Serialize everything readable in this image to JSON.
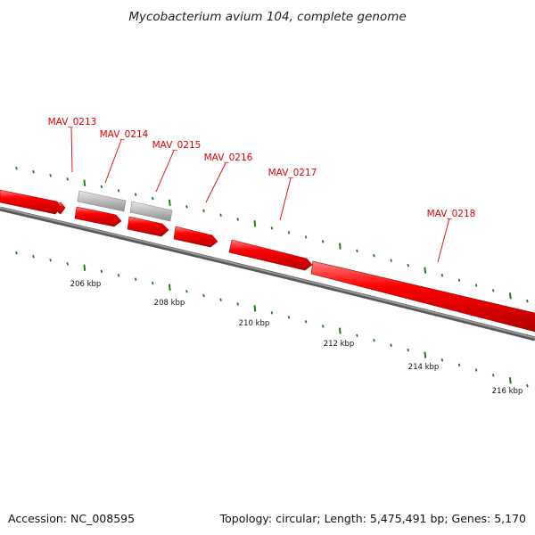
{
  "title": "Mycobacterium avium 104, complete genome",
  "footer": {
    "accession": "Accession: NC_008595",
    "summary": "Topology: circular; Length: 5,475,491 bp; Genes: 5,170"
  },
  "colors": {
    "gene_fill": "#ee0000",
    "gene_dark": "#a00000",
    "gene_light": "#ff7a7a",
    "gray_gene": "#bdbdbd",
    "gray_gene_dark": "#8a8a8a",
    "backbone": "#808080",
    "tick": "#1a7f1a",
    "label": "#e00000"
  },
  "genes": [
    {
      "name": "MAV_0213",
      "strand": "reverse"
    },
    {
      "name": "MAV_0214",
      "strand": "forward"
    },
    {
      "name": "MAV_0215",
      "strand": "forward"
    },
    {
      "name": "MAV_0216",
      "strand": "forward"
    },
    {
      "name": "MAV_0217",
      "strand": "forward"
    },
    {
      "name": "MAV_0218",
      "strand": "forward"
    }
  ],
  "scale_labels": [
    "206 kbp",
    "208 kbp",
    "210 kbp",
    "212 kbp",
    "214 kbp",
    "216 kbp"
  ]
}
